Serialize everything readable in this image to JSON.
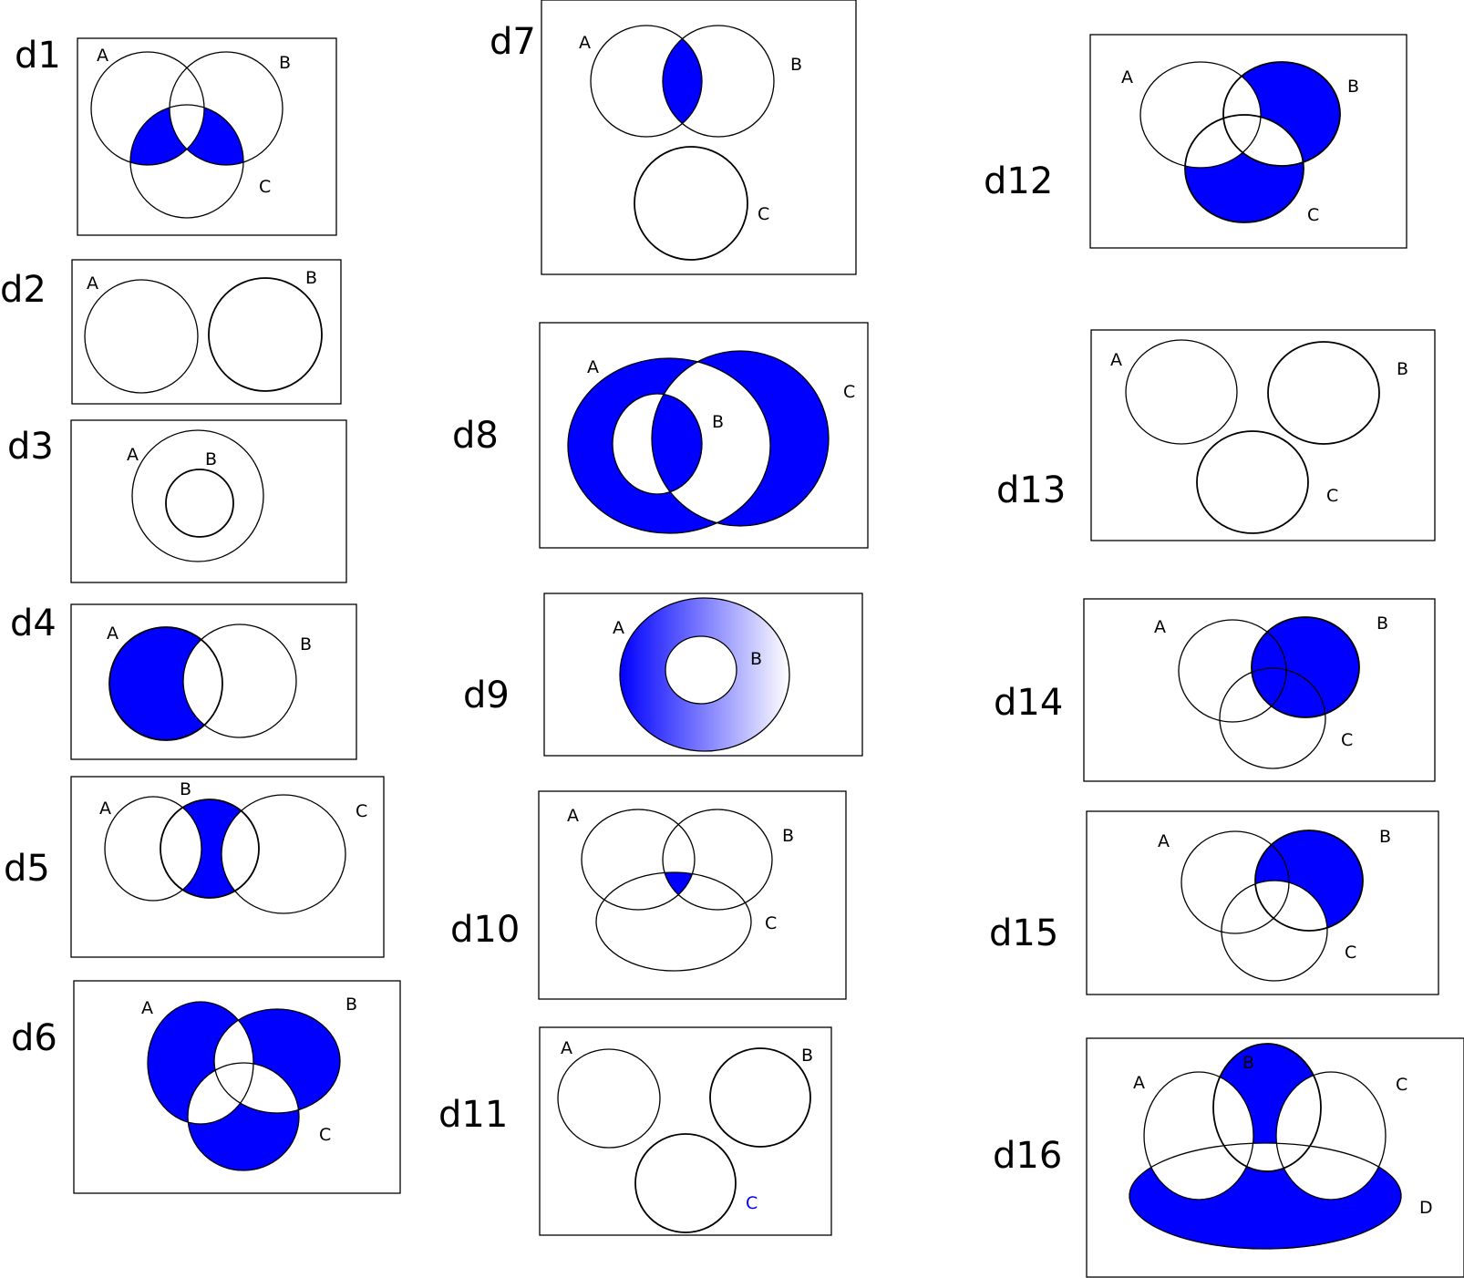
{
  "accent_color": "#0000ff",
  "diagrams": [
    {
      "id": "d1",
      "sets": [
        "A",
        "B",
        "C"
      ]
    },
    {
      "id": "d2",
      "sets": [
        "A",
        "B"
      ]
    },
    {
      "id": "d3",
      "sets": [
        "A",
        "B"
      ]
    },
    {
      "id": "d4",
      "sets": [
        "A",
        "B"
      ]
    },
    {
      "id": "d5",
      "sets": [
        "A",
        "B",
        "C"
      ]
    },
    {
      "id": "d6",
      "sets": [
        "A",
        "B",
        "C"
      ]
    },
    {
      "id": "d7",
      "sets": [
        "A",
        "B",
        "C"
      ]
    },
    {
      "id": "d8",
      "sets": [
        "A",
        "B",
        "C"
      ]
    },
    {
      "id": "d9",
      "sets": [
        "A",
        "B"
      ]
    },
    {
      "id": "d10",
      "sets": [
        "A",
        "B",
        "C"
      ]
    },
    {
      "id": "d11",
      "sets": [
        "A",
        "B",
        "C"
      ]
    },
    {
      "id": "d12",
      "sets": [
        "A",
        "B",
        "C"
      ]
    },
    {
      "id": "d13",
      "sets": [
        "A",
        "B",
        "C"
      ]
    },
    {
      "id": "d14",
      "sets": [
        "A",
        "B",
        "C"
      ]
    },
    {
      "id": "d15",
      "sets": [
        "A",
        "B",
        "C"
      ]
    },
    {
      "id": "d16",
      "sets": [
        "A",
        "B",
        "C",
        "D"
      ]
    }
  ]
}
